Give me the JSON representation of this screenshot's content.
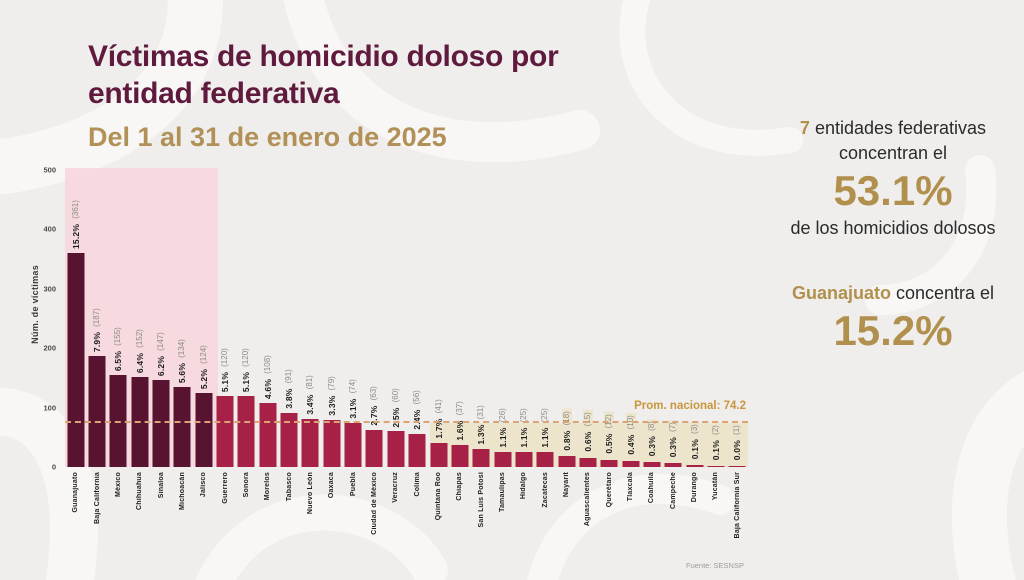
{
  "title": {
    "line1": "Víctimas de homicidio doloso por",
    "line2": "entidad federativa",
    "subtitle": "Del 1 al 31 de enero de 2025"
  },
  "stats": {
    "stat1": {
      "highlight": "7",
      "text1": " entidades federativas",
      "text2": "concentran el",
      "value": "53.1%",
      "text3": "de los homicidios dolosos"
    },
    "stat2": {
      "highlight": "Guanajuato",
      "text1": " concentra el",
      "value": "15.2%"
    }
  },
  "chart_data": {
    "type": "bar",
    "title": "Víctimas de homicidio doloso por entidad federativa, del 1 al 31 de enero de 2025",
    "ylabel": "Núm. de víctimas",
    "ylim": [
      0,
      500
    ],
    "yticks": [
      0,
      100,
      200,
      300,
      400,
      500
    ],
    "grid": false,
    "legend": "none",
    "national_average": 74.2,
    "national_average_label": "Prom. nacional: 74.2",
    "highlight_top_n": 7,
    "beige_label_start_index": 23,
    "categories": [
      "Guanajuato",
      "Baja California",
      "México",
      "Chihuahua",
      "Sinaloa",
      "Michoacán",
      "Jalisco",
      "Guerrero",
      "Sonora",
      "Morelos",
      "Tabasco",
      "Nuevo León",
      "Oaxaca",
      "Puebla",
      "Ciudad de México",
      "Veracruz",
      "Colima",
      "Quintana Roo",
      "Chiapas",
      "San Luis Potosí",
      "Tamaulipas",
      "Hidalgo",
      "Zacatecas",
      "Nayarit",
      "Aguascalientes",
      "Querétaro",
      "Tlaxcala",
      "Coahuila",
      "Campeche",
      "Durango",
      "Yucatán",
      "Baja California Sur"
    ],
    "values": [
      361,
      187,
      155,
      152,
      147,
      134,
      124,
      120,
      120,
      108,
      91,
      81,
      79,
      74,
      63,
      60,
      56,
      41,
      37,
      31,
      26,
      25,
      25,
      18,
      15,
      12,
      10,
      8,
      7,
      3,
      2,
      1
    ],
    "percent_labels": [
      "15.2%",
      "7.9%",
      "6.5%",
      "6.4%",
      "6.2%",
      "5.6%",
      "5.2%",
      "5.1%",
      "5.1%",
      "4.6%",
      "3.8%",
      "3.4%",
      "3.3%",
      "3.1%",
      "2.7%",
      "2.5%",
      "2.4%",
      "1.7%",
      "1.6%",
      "1.3%",
      "1.1%",
      "1.1%",
      "1.1%",
      "0.8%",
      "0.6%",
      "0.5%",
      "0.4%",
      "0.3%",
      "0.3%",
      "0.1%",
      "0.1%",
      "0.0%"
    ],
    "colors": {
      "bar_top7": "#571330",
      "bar_rest": "#a72045",
      "top7_band": "#f7d6dd",
      "below_avg_band": "#ece4cb",
      "avg_line": "#dba474",
      "accent_gold": "#b1904e",
      "title_maroon": "#5f1a3d"
    }
  },
  "source": "Fuente: SESNSP"
}
